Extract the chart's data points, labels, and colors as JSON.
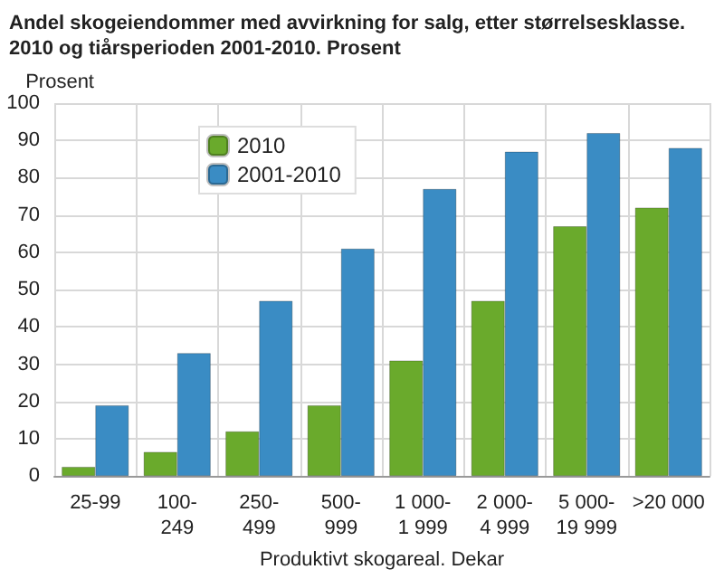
{
  "chart_data": {
    "type": "bar",
    "title": "Andel skogeiendommer med avvirkning for salg, etter størrelsesklasse. 2010 og tiårsperioden 2001-2010. Prosent",
    "xlabel": "Produktivt skogareal. Dekar",
    "ylabel": "Prosent",
    "categories": [
      "25-99",
      "100-\n249",
      "250-\n499",
      "500-\n999",
      "1 000-\n1 999",
      "2 000-\n4 999",
      "5 000-\n19 999",
      ">20 000"
    ],
    "series": [
      {
        "name": "2010",
        "color": "#6aaa2c",
        "values": [
          2.5,
          6.5,
          12,
          19,
          31,
          47,
          67,
          72
        ]
      },
      {
        "name": "2001-2010",
        "color": "#3a8cc4",
        "values": [
          19,
          33,
          47,
          61,
          77,
          87,
          92,
          88
        ]
      }
    ],
    "ylim": [
      0,
      100
    ],
    "yticks": [
      0,
      10,
      20,
      30,
      40,
      50,
      60,
      70,
      80,
      90,
      100
    ],
    "grid": true,
    "legend": "top left"
  }
}
